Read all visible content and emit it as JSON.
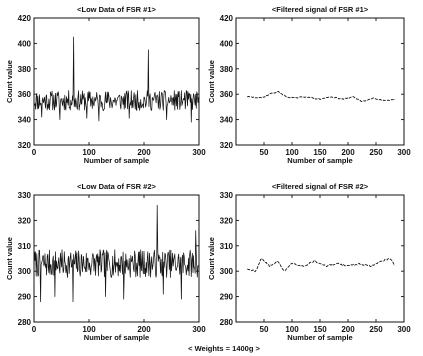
{
  "footer": "< Weights = 1400g >",
  "chart_data": [
    {
      "type": "line",
      "title": "<Low Data of FSR #1>",
      "xlabel": "Number of sample",
      "ylabel": "Count value",
      "xlim": [
        0,
        300
      ],
      "ylim": [
        320,
        420
      ],
      "xticks": [
        0,
        100,
        200,
        300
      ],
      "yticks": [
        320,
        340,
        360,
        380,
        400,
        420
      ],
      "series": [
        {
          "x_start": 0,
          "x_step": 1,
          "seed": 11,
          "style": "raw",
          "base": 355,
          "noise": 16,
          "noise_min": 338,
          "noise_max": 368,
          "spikes": [
            [
              72,
              405
            ],
            [
              208,
              395
            ]
          ],
          "dips": [
            [
              14,
              342
            ],
            [
              47,
              340
            ],
            [
              96,
              341
            ],
            [
              118,
              339
            ],
            [
              173,
              341
            ],
            [
              241,
              340
            ],
            [
              286,
              338
            ]
          ]
        }
      ]
    },
    {
      "type": "line",
      "title": "<Filtered signal of FSR #1>",
      "xlabel": "Number of sample",
      "ylabel": "Count value",
      "xlim": [
        0,
        300
      ],
      "ylim": [
        320,
        420
      ],
      "xticks": [
        50,
        100,
        150,
        200,
        250,
        300
      ],
      "yticks": [
        320,
        340,
        360,
        380,
        400,
        420
      ],
      "series": [
        {
          "x_start": 20,
          "x_step": 2,
          "seed": 29,
          "style": "filtered",
          "waypoints": [
            [
              20,
              358
            ],
            [
              45,
              357
            ],
            [
              60,
              360
            ],
            [
              75,
              362
            ],
            [
              90,
              358
            ],
            [
              105,
              357
            ],
            [
              125,
              358
            ],
            [
              150,
              356
            ],
            [
              170,
              358
            ],
            [
              190,
              356
            ],
            [
              210,
              358
            ],
            [
              225,
              354
            ],
            [
              245,
              357
            ],
            [
              265,
              355
            ],
            [
              285,
              356
            ]
          ],
          "jitter": 0.9
        }
      ]
    },
    {
      "type": "line",
      "title": "<Low Data of FSR #2>",
      "xlabel": "Number of sample",
      "ylabel": "Count value",
      "xlim": [
        0,
        300
      ],
      "ylim": [
        280,
        330
      ],
      "xticks": [
        0,
        100,
        200,
        300
      ],
      "yticks": [
        280,
        290,
        300,
        310,
        320,
        330
      ],
      "series": [
        {
          "x_start": 0,
          "x_step": 1,
          "seed": 7,
          "style": "raw",
          "base": 303,
          "noise": 11,
          "noise_min": 293,
          "noise_max": 309,
          "spikes": [
            [
              224,
              326
            ],
            [
              294,
              316
            ]
          ],
          "dips": [
            [
              12,
              288
            ],
            [
              38,
              290
            ],
            [
              71,
              288
            ],
            [
              130,
              290
            ],
            [
              163,
              289
            ],
            [
              235,
              291
            ],
            [
              268,
              289
            ]
          ]
        }
      ]
    },
    {
      "type": "line",
      "title": "<Filtered signal of FSR #2>",
      "xlabel": "Number of sample",
      "ylabel": "Count value",
      "xlim": [
        0,
        300
      ],
      "ylim": [
        280,
        330
      ],
      "xticks": [
        50,
        100,
        150,
        200,
        250,
        300
      ],
      "yticks": [
        280,
        290,
        300,
        310,
        320,
        330
      ],
      "series": [
        {
          "x_start": 20,
          "x_step": 2,
          "seed": 43,
          "style": "filtered",
          "waypoints": [
            [
              20,
              301
            ],
            [
              35,
              300
            ],
            [
              45,
              305
            ],
            [
              60,
              302
            ],
            [
              75,
              304
            ],
            [
              85,
              300
            ],
            [
              100,
              303
            ],
            [
              120,
              302
            ],
            [
              140,
              304
            ],
            [
              160,
              302
            ],
            [
              180,
              303
            ],
            [
              200,
              302
            ],
            [
              220,
              303
            ],
            [
              240,
              302
            ],
            [
              260,
              304
            ],
            [
              275,
              305
            ],
            [
              285,
              302
            ]
          ],
          "jitter": 0.6
        }
      ]
    }
  ]
}
